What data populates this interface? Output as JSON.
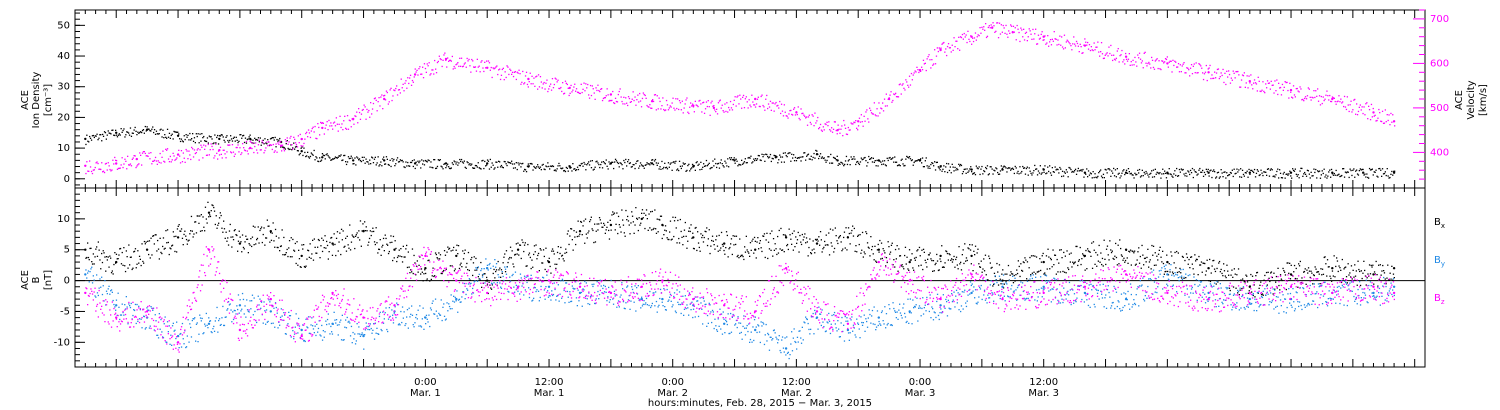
{
  "chart_data": [
    {
      "type": "scatter",
      "panel": "plasma",
      "ylabel_lines": [
        "ACE",
        "Ion Density",
        "[cm⁻³]"
      ],
      "y2label_lines": [
        "ACE",
        "Velocity",
        "[km/s]"
      ],
      "ylim": [
        -3,
        55
      ],
      "yticks": [
        0,
        10,
        20,
        30,
        40,
        50
      ],
      "y2lim": [
        320,
        720
      ],
      "y2ticks": [
        400,
        500,
        600,
        700
      ],
      "xlim": [
        -34,
        97
      ],
      "series": [
        {
          "name": "Ion Density",
          "axis": "left",
          "color": "#000000",
          "x": [
            -33,
            -30,
            -27,
            -24,
            -20,
            -17,
            -14,
            -12,
            -10,
            -7,
            -4,
            -1,
            2,
            6,
            10,
            14,
            18,
            22,
            26,
            30,
            34,
            38,
            40,
            44,
            48,
            50,
            53,
            56,
            60,
            64,
            68,
            72,
            76,
            80,
            84,
            88,
            91,
            94
          ],
          "y": [
            13,
            15,
            16,
            14,
            13,
            13,
            12,
            9,
            7,
            6,
            6,
            5,
            5,
            5,
            4,
            4,
            5,
            5,
            4,
            6,
            7,
            8,
            6,
            6,
            6,
            4,
            3,
            3,
            3,
            2,
            2,
            2,
            2,
            2,
            2,
            2,
            2,
            2
          ]
        },
        {
          "name": "Velocity",
          "axis": "right",
          "color": "#ff00ff",
          "x": [
            -33,
            -30,
            -28,
            -24,
            -20,
            -17,
            -14,
            -12,
            -10,
            -7,
            -4,
            -1,
            2,
            6,
            10,
            14,
            18,
            22,
            26,
            28,
            32,
            36,
            40,
            42,
            45,
            48,
            50,
            53,
            55,
            57,
            60,
            64,
            68,
            72,
            76,
            80,
            84,
            88,
            92,
            94
          ],
          "y": [
            370,
            375,
            385,
            395,
            405,
            410,
            415,
            430,
            455,
            475,
            520,
            575,
            610,
            590,
            565,
            545,
            530,
            515,
            505,
            500,
            520,
            490,
            450,
            470,
            520,
            585,
            630,
            660,
            680,
            670,
            660,
            640,
            615,
            600,
            580,
            560,
            540,
            520,
            490,
            470
          ]
        }
      ]
    },
    {
      "type": "scatter",
      "panel": "magnetic-field",
      "ylabel_lines": [
        "ACE",
        "B",
        "[nT]"
      ],
      "ylim": [
        -14,
        15
      ],
      "yticks": [
        -10,
        -5,
        0,
        5,
        10
      ],
      "zero_line": true,
      "xlim": [
        -34,
        97
      ],
      "series": [
        {
          "name": "Bx",
          "color": "#000000",
          "x": [
            -33,
            -30,
            -27,
            -24,
            -21,
            -18,
            -15,
            -12,
            -9,
            -6,
            -3,
            0,
            3,
            6,
            9,
            12,
            15,
            18,
            21,
            23,
            26,
            29,
            32,
            35,
            38,
            41,
            44,
            47,
            50,
            53,
            56,
            60,
            64,
            68,
            72,
            76,
            80,
            84,
            88,
            92,
            94
          ],
          "y": [
            5,
            3,
            5,
            7,
            11,
            6,
            8,
            4,
            6,
            8,
            5,
            2,
            4,
            0,
            5,
            3,
            8,
            9,
            10,
            9,
            7,
            6,
            5,
            7,
            6,
            7,
            5,
            3,
            4,
            4,
            0,
            3,
            4,
            5,
            3,
            2,
            -1,
            1,
            2,
            1,
            2
          ]
        },
        {
          "name": "By",
          "color": "#1e88e5",
          "x": [
            -33,
            -30,
            -27,
            -24,
            -21,
            -18,
            -15,
            -12,
            -9,
            -6,
            -3,
            0,
            3,
            6,
            9,
            12,
            15,
            18,
            21,
            23,
            26,
            29,
            32,
            35,
            38,
            41,
            44,
            47,
            50,
            53,
            56,
            60,
            64,
            68,
            72,
            76,
            80,
            84,
            88,
            92,
            94
          ],
          "y": [
            1,
            -4,
            -6,
            -9,
            -7,
            -4,
            -5,
            -8,
            -7,
            -9,
            -5,
            -6,
            -3,
            2,
            -1,
            -1,
            -2,
            -2,
            -3,
            -3,
            -4,
            -7,
            -8,
            -11,
            -6,
            -8,
            -6,
            -5,
            -4,
            -2,
            -1,
            -1,
            -2,
            -3,
            1,
            -2,
            -3,
            -3,
            -2,
            -2,
            -1
          ]
        },
        {
          "name": "Bz",
          "color": "#ff00ff",
          "x": [
            -33,
            -30,
            -27,
            -24,
            -21,
            -18,
            -15,
            -12,
            -9,
            -6,
            -3,
            0,
            3,
            6,
            9,
            12,
            15,
            18,
            21,
            23,
            26,
            29,
            32,
            35,
            38,
            41,
            44,
            47,
            50,
            53,
            56,
            60,
            64,
            68,
            72,
            76,
            80,
            84,
            88,
            92,
            94
          ],
          "y": [
            -2,
            -6,
            -5,
            -10,
            5,
            -8,
            -3,
            -9,
            -2,
            -6,
            -4,
            4,
            0,
            -2,
            -1,
            0,
            -1,
            -2,
            -1,
            0,
            -3,
            -4,
            -5,
            2,
            -5,
            -7,
            3,
            0,
            -3,
            1,
            -3,
            -2,
            -1,
            1,
            -2,
            -3,
            -2,
            -1,
            -2,
            -1,
            -2
          ]
        }
      ],
      "legend": [
        {
          "main": "B",
          "sub": "x",
          "color": "#000000"
        },
        {
          "main": "B",
          "sub": "y",
          "color": "#1e88e5"
        },
        {
          "main": "B",
          "sub": "z",
          "color": "#ff00ff"
        }
      ]
    }
  ],
  "x_axis": {
    "ticks": [
      {
        "x": 0,
        "time": "0:00",
        "day": "Mar. 1"
      },
      {
        "x": 12,
        "time": "12:00",
        "day": "Mar. 1"
      },
      {
        "x": 24,
        "time": "0:00",
        "day": "Mar. 2"
      },
      {
        "x": 36,
        "time": "12:00",
        "day": "Mar. 2"
      },
      {
        "x": 48,
        "time": "0:00",
        "day": "Mar. 3"
      },
      {
        "x": 60,
        "time": "12:00",
        "day": "Mar. 3"
      }
    ],
    "title": "hours:minutes, Feb. 28, 2015 − Mar.  3, 2015"
  }
}
